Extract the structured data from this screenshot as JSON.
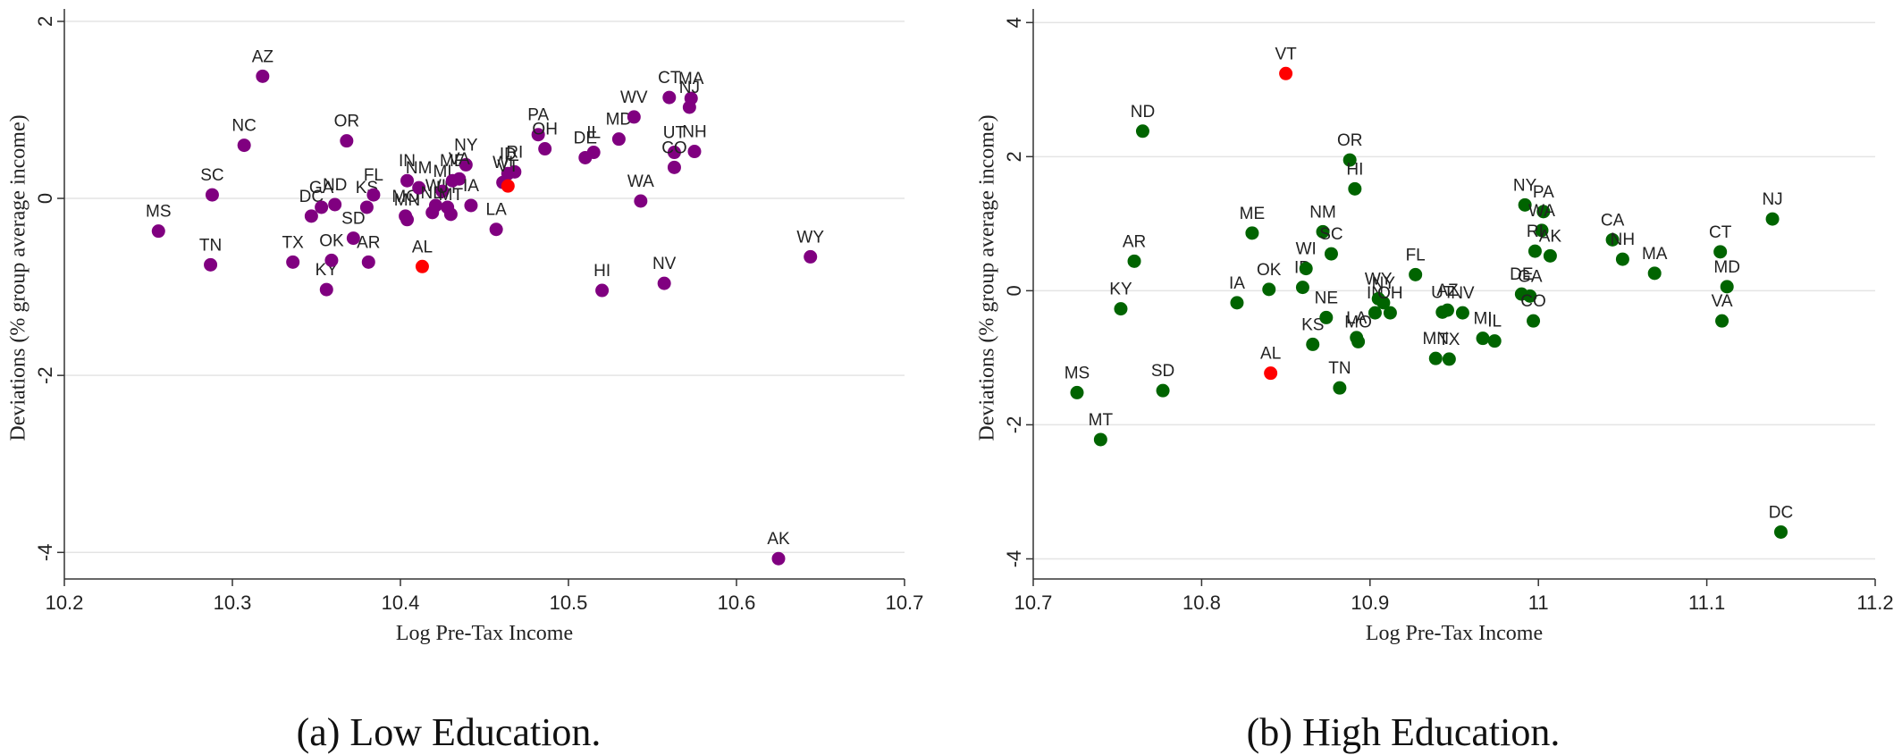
{
  "chart_data": [
    {
      "type": "scatter",
      "caption": "(a) Low Education.",
      "xlabel": "Log Pre-Tax Income",
      "ylabel": "Deviations (% group average income)",
      "xlim": [
        10.2,
        10.7
      ],
      "ylim": [
        -4.3,
        2.1
      ],
      "xticks": [
        "10.2",
        "10.3",
        "10.4",
        "10.5",
        "10.6",
        "10.7"
      ],
      "yticks": [
        "-4",
        "-2",
        "0",
        "2"
      ],
      "grid": "horizontal",
      "colors": {
        "default": "#800080",
        "highlight": "#ff0000"
      },
      "points": [
        {
          "label": "MS",
          "x": 10.256,
          "y": -0.37
        },
        {
          "label": "TN",
          "x": 10.287,
          "y": -0.75
        },
        {
          "label": "SC",
          "x": 10.288,
          "y": 0.04
        },
        {
          "label": "NC",
          "x": 10.307,
          "y": 0.6
        },
        {
          "label": "AZ",
          "x": 10.318,
          "y": 1.38
        },
        {
          "label": "TX",
          "x": 10.336,
          "y": -0.72
        },
        {
          "label": "DC",
          "x": 10.347,
          "y": -0.2
        },
        {
          "label": "GA",
          "x": 10.353,
          "y": -0.1
        },
        {
          "label": "KY",
          "x": 10.356,
          "y": -1.03
        },
        {
          "label": "OK",
          "x": 10.359,
          "y": -0.7
        },
        {
          "label": "ND",
          "x": 10.361,
          "y": -0.07
        },
        {
          "label": "OR",
          "x": 10.368,
          "y": 0.65
        },
        {
          "label": "SD",
          "x": 10.372,
          "y": -0.45
        },
        {
          "label": "AR",
          "x": 10.381,
          "y": -0.72
        },
        {
          "label": "KS",
          "x": 10.38,
          "y": -0.1
        },
        {
          "label": "FL",
          "x": 10.384,
          "y": 0.04
        },
        {
          "label": "MO",
          "x": 10.403,
          "y": -0.2
        },
        {
          "label": "MN",
          "x": 10.404,
          "y": -0.24
        },
        {
          "label": "IN",
          "x": 10.404,
          "y": 0.2
        },
        {
          "label": "NM",
          "x": 10.411,
          "y": 0.12
        },
        {
          "label": "AL",
          "x": 10.413,
          "y": -0.77,
          "highlight": true
        },
        {
          "label": "NE",
          "x": 10.419,
          "y": -0.16
        },
        {
          "label": "WI",
          "x": 10.421,
          "y": -0.08
        },
        {
          "label": "MI",
          "x": 10.425,
          "y": 0.08
        },
        {
          "label": "UT",
          "x": 10.428,
          "y": -0.1
        },
        {
          "label": "MT",
          "x": 10.43,
          "y": -0.18
        },
        {
          "label": "ME",
          "x": 10.431,
          "y": 0.2
        },
        {
          "label": "NY",
          "x": 10.439,
          "y": 0.38
        },
        {
          "label": "VA",
          "x": 10.435,
          "y": 0.22
        },
        {
          "label": "IA",
          "x": 10.442,
          "y": -0.08
        },
        {
          "label": "LA",
          "x": 10.457,
          "y": -0.35
        },
        {
          "label": "WI",
          "x": 10.461,
          "y": 0.18
        },
        {
          "label": "ID",
          "x": 10.464,
          "y": 0.28
        },
        {
          "label": "RI",
          "x": 10.468,
          "y": 0.3
        },
        {
          "label": "VT",
          "x": 10.464,
          "y": 0.14,
          "highlight": true
        },
        {
          "label": "PA",
          "x": 10.482,
          "y": 0.72
        },
        {
          "label": "OH",
          "x": 10.486,
          "y": 0.56
        },
        {
          "label": "IL",
          "x": 10.515,
          "y": 0.52
        },
        {
          "label": "DE",
          "x": 10.51,
          "y": 0.46
        },
        {
          "label": "HI",
          "x": 10.52,
          "y": -1.04
        },
        {
          "label": "MD",
          "x": 10.53,
          "y": 0.67
        },
        {
          "label": "WV",
          "x": 10.539,
          "y": 0.92
        },
        {
          "label": "WA",
          "x": 10.543,
          "y": -0.03
        },
        {
          "label": "NV",
          "x": 10.557,
          "y": -0.96
        },
        {
          "label": "CT",
          "x": 10.56,
          "y": 1.14
        },
        {
          "label": "UT",
          "x": 10.563,
          "y": 0.52
        },
        {
          "label": "CO",
          "x": 10.563,
          "y": 0.35
        },
        {
          "label": "MA",
          "x": 10.573,
          "y": 1.13
        },
        {
          "label": "NJ",
          "x": 10.572,
          "y": 1.03
        },
        {
          "label": "NH",
          "x": 10.575,
          "y": 0.53
        },
        {
          "label": "AK",
          "x": 10.625,
          "y": -4.07
        },
        {
          "label": "WY",
          "x": 10.644,
          "y": -0.66
        }
      ]
    },
    {
      "type": "scatter",
      "caption": "(b) High Education.",
      "xlabel": "Log Pre-Tax Income",
      "ylabel": "Deviations (% group average income)",
      "xlim": [
        10.7,
        11.2
      ],
      "ylim": [
        -4.3,
        4.15
      ],
      "xticks": [
        "10.7",
        "10.8",
        "10.9",
        "11",
        "11.1",
        "11.2"
      ],
      "yticks": [
        "-4",
        "-2",
        "0",
        "2",
        "4"
      ],
      "grid": "horizontal",
      "colors": {
        "default": "#006400",
        "highlight": "#ff0000"
      },
      "points": [
        {
          "label": "MS",
          "x": 10.726,
          "y": -1.52
        },
        {
          "label": "MT",
          "x": 10.74,
          "y": -2.22
        },
        {
          "label": "KY",
          "x": 10.752,
          "y": -0.27
        },
        {
          "label": "AR",
          "x": 10.76,
          "y": 0.44
        },
        {
          "label": "ND",
          "x": 10.765,
          "y": 2.38
        },
        {
          "label": "SD",
          "x": 10.777,
          "y": -1.49
        },
        {
          "label": "IA",
          "x": 10.821,
          "y": -0.18
        },
        {
          "label": "ME",
          "x": 10.83,
          "y": 0.86
        },
        {
          "label": "OK",
          "x": 10.84,
          "y": 0.02
        },
        {
          "label": "AL",
          "x": 10.841,
          "y": -1.23,
          "highlight": true
        },
        {
          "label": "VT",
          "x": 10.85,
          "y": 3.24,
          "highlight": true
        },
        {
          "label": "ID",
          "x": 10.86,
          "y": 0.05
        },
        {
          "label": "WI",
          "x": 10.862,
          "y": 0.33
        },
        {
          "label": "KS",
          "x": 10.866,
          "y": -0.8
        },
        {
          "label": "NM",
          "x": 10.872,
          "y": 0.88
        },
        {
          "label": "NE",
          "x": 10.874,
          "y": -0.4
        },
        {
          "label": "SC",
          "x": 10.877,
          "y": 0.55
        },
        {
          "label": "TN",
          "x": 10.882,
          "y": -1.45
        },
        {
          "label": "OR",
          "x": 10.888,
          "y": 1.95
        },
        {
          "label": "HI",
          "x": 10.891,
          "y": 1.52
        },
        {
          "label": "LA",
          "x": 10.892,
          "y": -0.7
        },
        {
          "label": "MO",
          "x": 10.893,
          "y": -0.76
        },
        {
          "label": "IN",
          "x": 10.903,
          "y": -0.33
        },
        {
          "label": "WY",
          "x": 10.905,
          "y": -0.12
        },
        {
          "label": "NY",
          "x": 10.908,
          "y": -0.18
        },
        {
          "label": "OH",
          "x": 10.912,
          "y": -0.33
        },
        {
          "label": "FL",
          "x": 10.927,
          "y": 0.24
        },
        {
          "label": "UT",
          "x": 10.943,
          "y": -0.32
        },
        {
          "label": "AZ",
          "x": 10.946,
          "y": -0.29
        },
        {
          "label": "MN",
          "x": 10.939,
          "y": -1.01
        },
        {
          "label": "TX",
          "x": 10.947,
          "y": -1.02
        },
        {
          "label": "NV",
          "x": 10.955,
          "y": -0.33
        },
        {
          "label": "MI",
          "x": 10.967,
          "y": -0.71
        },
        {
          "label": "IL",
          "x": 10.974,
          "y": -0.75
        },
        {
          "label": "DE",
          "x": 10.99,
          "y": -0.05
        },
        {
          "label": "GA",
          "x": 10.995,
          "y": -0.08
        },
        {
          "label": "NY",
          "x": 10.992,
          "y": 1.28
        },
        {
          "label": "PA",
          "x": 11.003,
          "y": 1.18
        },
        {
          "label": "WA",
          "x": 11.002,
          "y": 0.9
        },
        {
          "label": "RI",
          "x": 10.998,
          "y": 0.59
        },
        {
          "label": "AK",
          "x": 11.007,
          "y": 0.52
        },
        {
          "label": "CO",
          "x": 10.997,
          "y": -0.45
        },
        {
          "label": "CA",
          "x": 11.044,
          "y": 0.76
        },
        {
          "label": "NH",
          "x": 11.05,
          "y": 0.47
        },
        {
          "label": "MA",
          "x": 11.069,
          "y": 0.26
        },
        {
          "label": "CT",
          "x": 11.108,
          "y": 0.58
        },
        {
          "label": "MD",
          "x": 11.112,
          "y": 0.06
        },
        {
          "label": "VA",
          "x": 11.109,
          "y": -0.45
        },
        {
          "label": "NJ",
          "x": 11.139,
          "y": 1.07
        },
        {
          "label": "DC",
          "x": 11.144,
          "y": -3.6
        }
      ]
    }
  ]
}
